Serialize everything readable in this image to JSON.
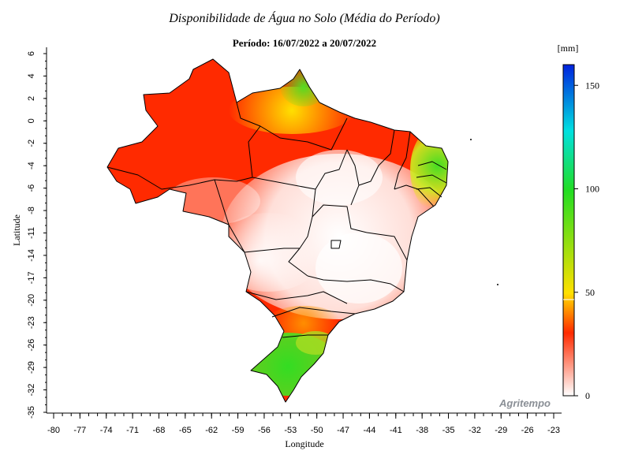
{
  "title": "Disponibilidade de Água no Solo (Média do Período)",
  "subtitle": "Período: 16/07/2022 a 20/07/2022",
  "axes": {
    "xlabel": "Longitude",
    "ylabel": "Latitude",
    "x_ticks": [
      "-80",
      "-77",
      "-74",
      "-71",
      "-68",
      "-65",
      "-62",
      "-59",
      "-56",
      "-53",
      "-50",
      "-47",
      "-44",
      "-41",
      "-38",
      "-35",
      "-32",
      "-29",
      "-26",
      "-23"
    ],
    "y_ticks": [
      "6",
      "4",
      "2",
      "0",
      "-2",
      "-4",
      "-6",
      "-8",
      "-11",
      "-14",
      "-17",
      "-20",
      "-23",
      "-26",
      "-29",
      "-32",
      "-35"
    ]
  },
  "colorbar": {
    "unit": "[mm]",
    "labels": [
      "150",
      "100",
      "50",
      "0"
    ],
    "min": 0,
    "max": 160,
    "colors": {
      "0": "#ffffff",
      "30": "#ff2a00",
      "50": "#ffe000",
      "100": "#22dd22",
      "130": "#00e0e0",
      "160": "#0022dd"
    }
  },
  "brand": "Agritempo",
  "regions": {
    "north_amazon": "high red (~30 mm)",
    "northeast_coast": "green/yellow (~60-100 mm)",
    "central": "white (~0-10 mm)",
    "south": "green (~90-100 mm)"
  }
}
